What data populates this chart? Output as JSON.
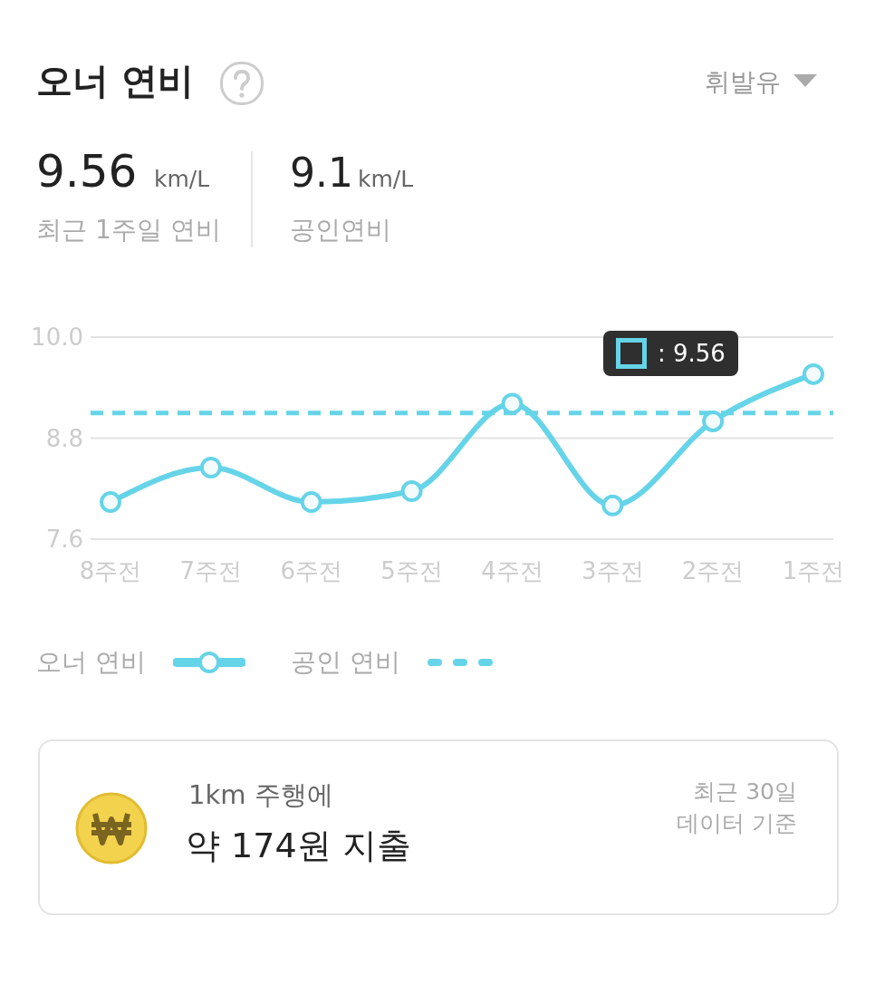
{
  "chart_data": {
    "type": "line",
    "title": "오너 연비",
    "categories": [
      "8주전",
      "7주전",
      "6주전",
      "5주전",
      "4주전",
      "3주전",
      "2주전",
      "1주전"
    ],
    "series": [
      {
        "name": "오너 연비",
        "color": "#66d4e8",
        "values": [
          8.04,
          8.45,
          8.04,
          8.17,
          9.21,
          8.0,
          9.0,
          9.56
        ]
      }
    ],
    "ylim": [
      7.6,
      10.0
    ],
    "yticks": [
      {
        "value": 7.6,
        "label": "7.6"
      },
      {
        "value": 8.8,
        "label": "8.8"
      },
      {
        "value": 10.0,
        "label": "10.0"
      }
    ],
    "grid": "y",
    "marker": "circle",
    "line_style": "solid",
    "legend": "bottom",
    "ref_lines": [
      {
        "axis": "y",
        "value": 9.1,
        "label": "공인 연비",
        "color": "#66d4e8",
        "line_style": "dashed"
      }
    ],
    "annotations": [
      "휘발유",
      "9.56",
      "km/L",
      "최근 1주일 연비",
      "9.1",
      "km/L",
      "공인연비",
      ": 9.56",
      "1km 주행에",
      "약 174원 지출",
      "최근 30일",
      "데이터 기준"
    ]
  }
}
